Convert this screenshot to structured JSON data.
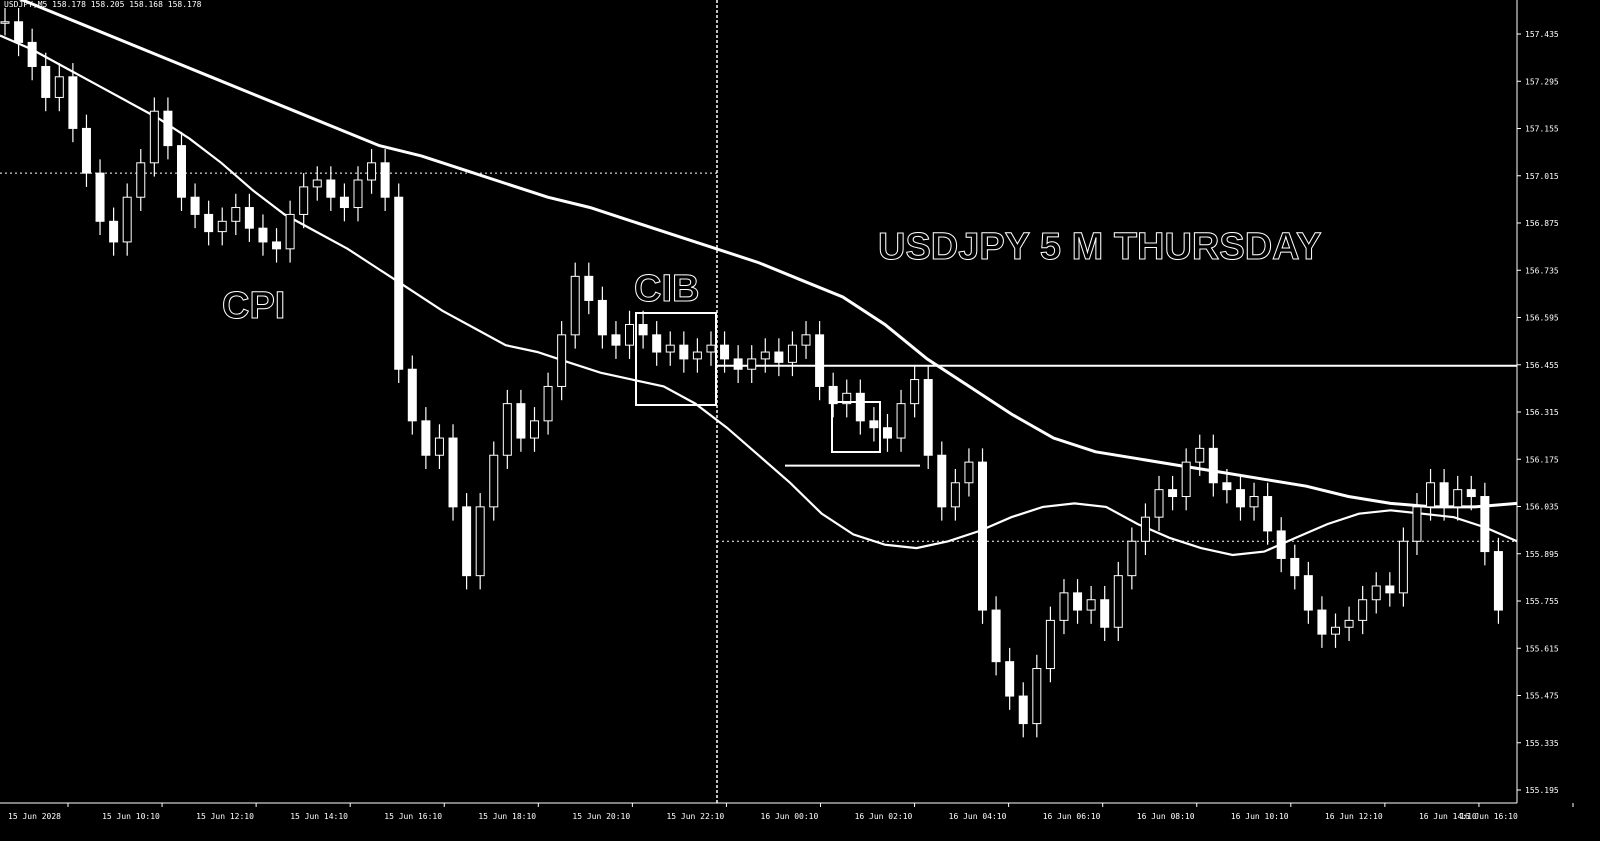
{
  "header": {
    "symbol_ohlc": "USDJPY,M5 158.178 158.205 158.168 158.178"
  },
  "annotations": {
    "title": "USDJPY 5 M THURSDAY",
    "cpi": "CPI",
    "cib": "CIB"
  },
  "colors": {
    "background": "#000000",
    "foreground": "#ffffff"
  },
  "chart_data": {
    "type": "candlestick",
    "x_ticks": [
      "15 Jun 2028",
      "15 Jun 10:10",
      "15 Jun 12:10",
      "15 Jun 14:10",
      "15 Jun 16:10",
      "15 Jun 18:10",
      "15 Jun 20:10",
      "15 Jun 22:10",
      "16 Jun 00:10",
      "16 Jun 02:10",
      "16 Jun 04:10",
      "16 Jun 06:10",
      "16 Jun 08:10",
      "16 Jun 10:10",
      "16 Jun 12:10",
      "16 Jun 14:10",
      "16 Jun 16:10"
    ],
    "y_ticks": [
      "157.435",
      "157.295",
      "157.155",
      "157.015",
      "156.875",
      "156.735",
      "156.595",
      "156.455",
      "156.315",
      "156.175",
      "156.035",
      "155.895",
      "155.755",
      "155.615",
      "155.475",
      "155.335",
      "155.195"
    ],
    "ylim": [
      155.195,
      157.5
    ],
    "horizontal_lines": [
      157.02,
      156.46,
      156.17,
      155.95
    ],
    "vertical_separator_time": "16 Jun 00:00",
    "grid": false,
    "closes": [
      157.46,
      157.4,
      157.33,
      157.24,
      157.3,
      157.15,
      157.02,
      156.88,
      156.82,
      156.95,
      157.05,
      157.2,
      157.1,
      156.95,
      156.9,
      156.85,
      156.88,
      156.92,
      156.86,
      156.82,
      156.8,
      156.9,
      156.98,
      157.0,
      156.95,
      156.92,
      157.0,
      157.05,
      156.95,
      156.45,
      156.3,
      156.2,
      156.25,
      156.05,
      155.85,
      156.05,
      156.2,
      156.35,
      156.25,
      156.3,
      156.4,
      156.55,
      156.72,
      156.65,
      156.55,
      156.52,
      156.58,
      156.55,
      156.5,
      156.52,
      156.48,
      156.5,
      156.52,
      156.48,
      156.45,
      156.48,
      156.5,
      156.47,
      156.52,
      156.55,
      156.4,
      156.35,
      156.38,
      156.3,
      156.28,
      156.25,
      156.35,
      156.42,
      156.2,
      156.05,
      156.12,
      156.18,
      155.75,
      155.6,
      155.5,
      155.42,
      155.58,
      155.72,
      155.8,
      155.75,
      155.78,
      155.7,
      155.85,
      155.95,
      156.02,
      156.1,
      156.08,
      156.18,
      156.22,
      156.12,
      156.1,
      156.05,
      156.08,
      155.98,
      155.9,
      155.85,
      155.75,
      155.68,
      155.7,
      155.72,
      155.78,
      155.82,
      155.8,
      155.95,
      156.05,
      156.12,
      156.05,
      156.1,
      156.08,
      155.92,
      155.75
    ],
    "moving_averages": [
      {
        "values": [
          157.42,
          157.38,
          157.33,
          157.28,
          157.23,
          157.18,
          157.12,
          157.05,
          156.97,
          156.9,
          156.85,
          156.8,
          156.74,
          156.68,
          156.62,
          156.57,
          156.52,
          156.5,
          156.47,
          156.44,
          156.42,
          156.4,
          156.35,
          156.28,
          156.2,
          156.12,
          156.03,
          155.97,
          155.94,
          155.93,
          155.95,
          155.98,
          156.02,
          156.05,
          156.06,
          156.05,
          156.0,
          155.96,
          155.93,
          155.91,
          155.92,
          155.96,
          156.0,
          156.03,
          156.04,
          156.03,
          156.02,
          155.99,
          155.95
        ]
      },
      {
        "values": [
          157.55,
          157.5,
          157.45,
          157.4,
          157.35,
          157.3,
          157.25,
          157.2,
          157.15,
          157.1,
          157.07,
          157.03,
          156.99,
          156.95,
          156.92,
          156.88,
          156.84,
          156.8,
          156.76,
          156.71,
          156.66,
          156.58,
          156.48,
          156.4,
          156.32,
          156.25,
          156.21,
          156.19,
          156.17,
          156.15,
          156.13,
          156.11,
          156.08,
          156.06,
          156.05,
          156.05,
          156.06
        ]
      }
    ]
  }
}
